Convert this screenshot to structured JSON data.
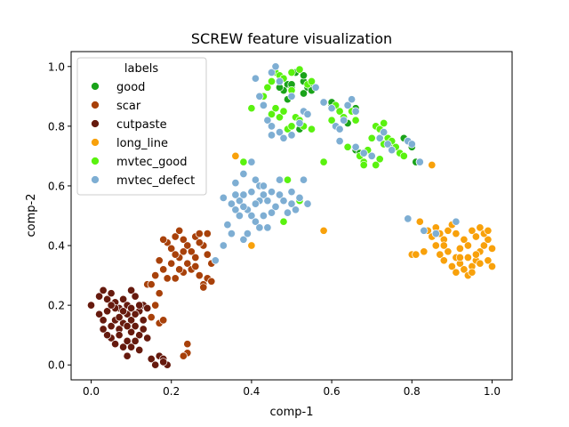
{
  "chart_data": {
    "type": "scatter",
    "title": "SCREW feature visualization",
    "xlabel": "comp-1",
    "ylabel": "comp-2",
    "xlim": [
      -0.05,
      1.05
    ],
    "ylim": [
      -0.05,
      1.05
    ],
    "xticks": [
      0.0,
      0.2,
      0.4,
      0.6,
      0.8,
      1.0
    ],
    "yticks": [
      0.0,
      0.2,
      0.4,
      0.6,
      0.8,
      1.0
    ],
    "tick_labels_x": [
      "0.0",
      "0.2",
      "0.4",
      "0.6",
      "0.8",
      "1.0"
    ],
    "tick_labels_y": [
      "0.0",
      "0.2",
      "0.4",
      "0.6",
      "0.8",
      "1.0"
    ],
    "grid": false,
    "legend": {
      "title": "labels",
      "placement": "top-left"
    },
    "series": [
      {
        "name": "good",
        "color": "#1aa31a",
        "points": [
          [
            0.49,
            0.94
          ],
          [
            0.5,
            0.93
          ],
          [
            0.53,
            0.95
          ],
          [
            0.54,
            0.93
          ],
          [
            0.55,
            0.94
          ],
          [
            0.53,
            0.97
          ],
          [
            0.48,
            0.92
          ],
          [
            0.51,
            0.98
          ],
          [
            0.49,
            0.89
          ],
          [
            0.53,
            0.91
          ],
          [
            0.55,
            0.92
          ],
          [
            0.47,
            0.93
          ],
          [
            0.66,
            0.86
          ],
          [
            0.6,
            0.87
          ],
          [
            0.6,
            0.88
          ],
          [
            0.64,
            0.81
          ],
          [
            0.66,
            0.72
          ],
          [
            0.67,
            0.71
          ],
          [
            0.75,
            0.74
          ],
          [
            0.78,
            0.76
          ],
          [
            0.79,
            0.75
          ],
          [
            0.8,
            0.73
          ],
          [
            0.81,
            0.68
          ],
          [
            0.82,
            0.68
          ],
          [
            0.52,
            0.79
          ],
          [
            0.5,
            0.94
          ]
        ]
      },
      {
        "name": "scar",
        "color": "#a8410a",
        "points": [
          [
            0.19,
            0.41
          ],
          [
            0.2,
            0.39
          ],
          [
            0.21,
            0.43
          ],
          [
            0.22,
            0.36
          ],
          [
            0.23,
            0.42
          ],
          [
            0.24,
            0.4
          ],
          [
            0.25,
            0.38
          ],
          [
            0.26,
            0.43
          ],
          [
            0.27,
            0.44
          ],
          [
            0.28,
            0.4
          ],
          [
            0.29,
            0.37
          ],
          [
            0.2,
            0.34
          ],
          [
            0.21,
            0.29
          ],
          [
            0.23,
            0.31
          ],
          [
            0.24,
            0.34
          ],
          [
            0.25,
            0.32
          ],
          [
            0.26,
            0.33
          ],
          [
            0.27,
            0.3
          ],
          [
            0.28,
            0.27
          ],
          [
            0.29,
            0.29
          ],
          [
            0.3,
            0.28
          ],
          [
            0.17,
            0.35
          ],
          [
            0.18,
            0.32
          ],
          [
            0.16,
            0.3
          ],
          [
            0.14,
            0.27
          ],
          [
            0.15,
            0.27
          ],
          [
            0.17,
            0.24
          ],
          [
            0.16,
            0.2
          ],
          [
            0.15,
            0.16
          ],
          [
            0.17,
            0.14
          ],
          [
            0.18,
            0.15
          ],
          [
            0.19,
            0.29
          ],
          [
            0.22,
            0.45
          ],
          [
            0.23,
            0.38
          ],
          [
            0.24,
            0.04
          ],
          [
            0.24,
            0.07
          ],
          [
            0.23,
            0.03
          ],
          [
            0.29,
            0.44
          ],
          [
            0.3,
            0.34
          ],
          [
            0.28,
            0.26
          ],
          [
            0.26,
            0.36
          ],
          [
            0.21,
            0.37
          ],
          [
            0.18,
            0.42
          ],
          [
            0.27,
            0.41
          ],
          [
            0.22,
            0.32
          ]
        ]
      },
      {
        "name": "cutpaste",
        "color": "#661a0e",
        "points": [
          [
            0.0,
            0.2
          ],
          [
            0.02,
            0.23
          ],
          [
            0.03,
            0.25
          ],
          [
            0.04,
            0.22
          ],
          [
            0.05,
            0.24
          ],
          [
            0.06,
            0.21
          ],
          [
            0.07,
            0.19
          ],
          [
            0.08,
            0.22
          ],
          [
            0.09,
            0.2
          ],
          [
            0.1,
            0.25
          ],
          [
            0.11,
            0.23
          ],
          [
            0.12,
            0.18
          ],
          [
            0.13,
            0.2
          ],
          [
            0.14,
            0.19
          ],
          [
            0.02,
            0.17
          ],
          [
            0.03,
            0.15
          ],
          [
            0.04,
            0.18
          ],
          [
            0.05,
            0.13
          ],
          [
            0.06,
            0.15
          ],
          [
            0.07,
            0.12
          ],
          [
            0.08,
            0.14
          ],
          [
            0.09,
            0.17
          ],
          [
            0.1,
            0.15
          ],
          [
            0.11,
            0.13
          ],
          [
            0.12,
            0.1
          ],
          [
            0.13,
            0.12
          ],
          [
            0.14,
            0.09
          ],
          [
            0.05,
            0.09
          ],
          [
            0.06,
            0.07
          ],
          [
            0.07,
            0.1
          ],
          [
            0.08,
            0.06
          ],
          [
            0.09,
            0.08
          ],
          [
            0.1,
            0.06
          ],
          [
            0.11,
            0.08
          ],
          [
            0.12,
            0.05
          ],
          [
            0.09,
            0.03
          ],
          [
            0.1,
            0.19
          ],
          [
            0.11,
            0.17
          ],
          [
            0.12,
            0.2
          ],
          [
            0.08,
            0.18
          ],
          [
            0.07,
            0.16
          ],
          [
            0.13,
            0.15
          ],
          [
            0.15,
            0.02
          ],
          [
            0.16,
            0.0
          ],
          [
            0.17,
            0.03
          ],
          [
            0.18,
            0.02
          ],
          [
            0.19,
            0.0
          ],
          [
            0.18,
            0.01
          ],
          [
            0.04,
            0.1
          ],
          [
            0.03,
            0.12
          ],
          [
            0.1,
            0.11
          ],
          [
            0.09,
            0.13
          ],
          [
            0.06,
            0.19
          ],
          [
            0.05,
            0.2
          ]
        ]
      },
      {
        "name": "long_line",
        "color": "#f8a10b",
        "points": [
          [
            0.82,
            0.48
          ],
          [
            0.84,
            0.45
          ],
          [
            0.85,
            0.43
          ],
          [
            0.86,
            0.46
          ],
          [
            0.87,
            0.44
          ],
          [
            0.88,
            0.42
          ],
          [
            0.89,
            0.45
          ],
          [
            0.86,
            0.4
          ],
          [
            0.87,
            0.37
          ],
          [
            0.88,
            0.35
          ],
          [
            0.89,
            0.38
          ],
          [
            0.9,
            0.33
          ],
          [
            0.91,
            0.31
          ],
          [
            0.92,
            0.34
          ],
          [
            0.93,
            0.32
          ],
          [
            0.94,
            0.36
          ],
          [
            0.95,
            0.33
          ],
          [
            0.96,
            0.35
          ],
          [
            0.97,
            0.38
          ],
          [
            0.98,
            0.4
          ],
          [
            0.99,
            0.42
          ],
          [
            1.0,
            0.39
          ],
          [
            0.95,
            0.45
          ],
          [
            0.96,
            0.43
          ],
          [
            0.97,
            0.46
          ],
          [
            0.98,
            0.44
          ],
          [
            0.99,
            0.45
          ],
          [
            0.92,
            0.39
          ],
          [
            0.93,
            0.42
          ],
          [
            0.94,
            0.4
          ],
          [
            0.91,
            0.44
          ],
          [
            0.9,
            0.47
          ],
          [
            0.91,
            0.36
          ],
          [
            0.94,
            0.3
          ],
          [
            0.95,
            0.31
          ],
          [
            0.96,
            0.37
          ],
          [
            0.97,
            0.34
          ],
          [
            0.8,
            0.37
          ],
          [
            0.81,
            0.37
          ],
          [
            0.83,
            0.38
          ],
          [
            0.85,
            0.67
          ],
          [
            0.36,
            0.7
          ],
          [
            0.4,
            0.4
          ],
          [
            0.58,
            0.45
          ],
          [
            0.88,
            0.4
          ],
          [
            0.92,
            0.36
          ],
          [
            0.99,
            0.35
          ],
          [
            1.0,
            0.33
          ]
        ]
      },
      {
        "name": "mvtec_good",
        "color": "#5af20f",
        "points": [
          [
            0.43,
            0.9
          ],
          [
            0.44,
            0.93
          ],
          [
            0.45,
            0.95
          ],
          [
            0.46,
            0.98
          ],
          [
            0.47,
            0.97
          ],
          [
            0.48,
            0.96
          ],
          [
            0.5,
            0.98
          ],
          [
            0.52,
            0.99
          ],
          [
            0.54,
            0.94
          ],
          [
            0.55,
            0.95
          ],
          [
            0.45,
            0.84
          ],
          [
            0.46,
            0.86
          ],
          [
            0.47,
            0.83
          ],
          [
            0.48,
            0.85
          ],
          [
            0.49,
            0.79
          ],
          [
            0.5,
            0.8
          ],
          [
            0.51,
            0.83
          ],
          [
            0.52,
            0.82
          ],
          [
            0.53,
            0.8
          ],
          [
            0.55,
            0.79
          ],
          [
            0.6,
            0.82
          ],
          [
            0.61,
            0.87
          ],
          [
            0.62,
            0.85
          ],
          [
            0.63,
            0.83
          ],
          [
            0.65,
            0.85
          ],
          [
            0.66,
            0.82
          ],
          [
            0.67,
            0.7
          ],
          [
            0.68,
            0.68
          ],
          [
            0.69,
            0.72
          ],
          [
            0.7,
            0.76
          ],
          [
            0.71,
            0.8
          ],
          [
            0.72,
            0.79
          ],
          [
            0.73,
            0.74
          ],
          [
            0.74,
            0.76
          ],
          [
            0.75,
            0.75
          ],
          [
            0.76,
            0.73
          ],
          [
            0.77,
            0.71
          ],
          [
            0.78,
            0.7
          ],
          [
            0.72,
            0.69
          ],
          [
            0.71,
            0.67
          ],
          [
            0.73,
            0.81
          ],
          [
            0.49,
            0.62
          ],
          [
            0.52,
            0.55
          ],
          [
            0.48,
            0.48
          ],
          [
            0.38,
            0.68
          ],
          [
            0.58,
            0.68
          ],
          [
            0.64,
            0.73
          ],
          [
            0.68,
            0.67
          ],
          [
            0.5,
            0.92
          ],
          [
            0.4,
            0.86
          ]
        ]
      },
      {
        "name": "mvtec_defect",
        "color": "#7eaed3",
        "points": [
          [
            0.45,
            0.98
          ],
          [
            0.46,
            1.0
          ],
          [
            0.47,
            0.95
          ],
          [
            0.41,
            0.96
          ],
          [
            0.42,
            0.9
          ],
          [
            0.43,
            0.87
          ],
          [
            0.44,
            0.82
          ],
          [
            0.45,
            0.8
          ],
          [
            0.47,
            0.78
          ],
          [
            0.48,
            0.76
          ],
          [
            0.5,
            0.77
          ],
          [
            0.52,
            0.81
          ],
          [
            0.53,
            0.85
          ],
          [
            0.54,
            0.84
          ],
          [
            0.5,
            0.9
          ],
          [
            0.56,
            0.93
          ],
          [
            0.58,
            0.88
          ],
          [
            0.6,
            0.86
          ],
          [
            0.61,
            0.8
          ],
          [
            0.62,
            0.79
          ],
          [
            0.63,
            0.82
          ],
          [
            0.64,
            0.87
          ],
          [
            0.65,
            0.89
          ],
          [
            0.66,
            0.85
          ],
          [
            0.62,
            0.75
          ],
          [
            0.66,
            0.73
          ],
          [
            0.68,
            0.71
          ],
          [
            0.7,
            0.7
          ],
          [
            0.72,
            0.76
          ],
          [
            0.73,
            0.78
          ],
          [
            0.74,
            0.74
          ],
          [
            0.75,
            0.72
          ],
          [
            0.79,
            0.75
          ],
          [
            0.8,
            0.74
          ],
          [
            0.82,
            0.68
          ],
          [
            0.79,
            0.49
          ],
          [
            0.83,
            0.45
          ],
          [
            0.86,
            0.44
          ],
          [
            0.91,
            0.48
          ],
          [
            0.45,
            0.77
          ],
          [
            0.38,
            0.64
          ],
          [
            0.4,
            0.68
          ],
          [
            0.41,
            0.62
          ],
          [
            0.42,
            0.6
          ],
          [
            0.43,
            0.57
          ],
          [
            0.44,
            0.55
          ],
          [
            0.45,
            0.58
          ],
          [
            0.46,
            0.53
          ],
          [
            0.47,
            0.57
          ],
          [
            0.48,
            0.55
          ],
          [
            0.49,
            0.51
          ],
          [
            0.5,
            0.54
          ],
          [
            0.51,
            0.52
          ],
          [
            0.52,
            0.56
          ],
          [
            0.53,
            0.62
          ],
          [
            0.54,
            0.54
          ],
          [
            0.36,
            0.61
          ],
          [
            0.37,
            0.55
          ],
          [
            0.38,
            0.57
          ],
          [
            0.39,
            0.52
          ],
          [
            0.4,
            0.5
          ],
          [
            0.41,
            0.48
          ],
          [
            0.42,
            0.46
          ],
          [
            0.43,
            0.5
          ],
          [
            0.35,
            0.54
          ],
          [
            0.36,
            0.52
          ],
          [
            0.37,
            0.5
          ],
          [
            0.38,
            0.42
          ],
          [
            0.35,
            0.44
          ],
          [
            0.34,
            0.47
          ],
          [
            0.33,
            0.4
          ],
          [
            0.31,
            0.35
          ],
          [
            0.33,
            0.56
          ],
          [
            0.38,
            0.53
          ],
          [
            0.42,
            0.55
          ],
          [
            0.45,
            0.51
          ],
          [
            0.47,
            0.62
          ],
          [
            0.39,
            0.44
          ],
          [
            0.41,
            0.54
          ],
          [
            0.43,
            0.6
          ],
          [
            0.5,
            0.58
          ],
          [
            0.44,
            0.46
          ],
          [
            0.4,
            0.58
          ],
          [
            0.36,
            0.57
          ]
        ]
      }
    ]
  }
}
